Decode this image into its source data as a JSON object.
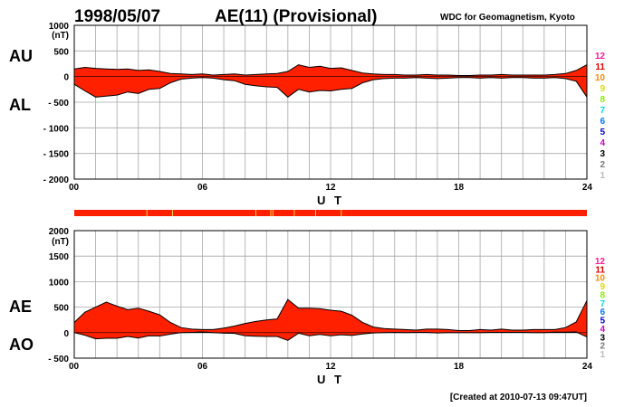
{
  "header": {
    "date": "1998/05/07",
    "index": "AE(11) (Provisional)",
    "source": "WDC for Geomagnetism, Kyoto"
  },
  "footer": {
    "created": "[Created at 2010-07-13 09:47UT]"
  },
  "colors": {
    "fill": "#ff2000",
    "station_strip": "#ff2000",
    "highlight": "#ffd040",
    "grid": "#a8a8a8",
    "background": "#ffffff"
  },
  "station_scale": {
    "labels": [
      "12",
      "11",
      "10",
      "9",
      "8",
      "7",
      "6",
      "5",
      "4",
      "3",
      "2",
      "1"
    ],
    "colors": [
      "#ff1493",
      "#dd0000",
      "#ff8800",
      "#dddd00",
      "#88ee00",
      "#00dddd",
      "#0077ff",
      "#0000cc",
      "#cc00cc",
      "#000000",
      "#777777",
      "#bbbbbb"
    ]
  },
  "chart_data": [
    {
      "type": "area",
      "panel": "AU-AL",
      "left_labels": [
        "AU",
        "AL"
      ],
      "unit": "(nT)",
      "xlabel": "U T",
      "xlim": [
        0,
        24
      ],
      "ylim": [
        -2000,
        1000
      ],
      "x_ticks": [
        "00",
        "06",
        "12",
        "18",
        "24"
      ],
      "y_ticks": [
        1000,
        500,
        0,
        -500,
        -1000,
        -1500,
        -2000
      ],
      "y_tick_labels": [
        "1000",
        "500",
        "0",
        "- 500",
        "- 1000",
        "- 1500",
        "- 2000"
      ],
      "grid": true,
      "x": [
        0,
        0.5,
        1,
        1.5,
        2,
        2.5,
        3,
        3.5,
        4,
        4.5,
        5,
        5.5,
        6,
        6.5,
        7,
        7.5,
        8,
        8.5,
        9,
        9.5,
        10,
        10.5,
        11,
        11.5,
        12,
        12.5,
        13,
        13.5,
        14,
        14.5,
        15,
        15.5,
        16,
        16.5,
        17,
        17.5,
        18,
        18.5,
        19,
        19.5,
        20,
        20.5,
        21,
        21.5,
        22,
        22.5,
        23,
        23.5,
        24
      ],
      "series": [
        {
          "name": "AU",
          "values": [
            150,
            180,
            160,
            150,
            140,
            150,
            120,
            130,
            100,
            60,
            50,
            40,
            50,
            30,
            40,
            50,
            30,
            40,
            50,
            60,
            100,
            230,
            180,
            200,
            160,
            170,
            120,
            70,
            50,
            40,
            40,
            30,
            30,
            40,
            30,
            30,
            20,
            20,
            30,
            30,
            40,
            30,
            30,
            30,
            30,
            40,
            60,
            120,
            230
          ]
        },
        {
          "name": "AL",
          "values": [
            -150,
            -280,
            -400,
            -380,
            -360,
            -300,
            -330,
            -250,
            -230,
            -120,
            -50,
            -30,
            -20,
            -30,
            -60,
            -80,
            -150,
            -180,
            -200,
            -210,
            -400,
            -250,
            -300,
            -270,
            -280,
            -250,
            -230,
            -120,
            -60,
            -40,
            -30,
            -30,
            -20,
            -30,
            -40,
            -30,
            -20,
            -20,
            -30,
            -20,
            -30,
            -20,
            -20,
            -30,
            -30,
            -20,
            -40,
            -90,
            -400
          ]
        }
      ]
    },
    {
      "type": "area",
      "panel": "AE-AO",
      "left_labels": [
        "AE",
        "AO"
      ],
      "unit": "(nT)",
      "xlabel": "U T",
      "xlim": [
        0,
        24
      ],
      "ylim": [
        -500,
        2000
      ],
      "x_ticks": [
        "00",
        "06",
        "12",
        "18",
        "24"
      ],
      "y_ticks": [
        2000,
        1500,
        1000,
        500,
        0,
        -500
      ],
      "y_tick_labels": [
        "2000",
        "1500",
        "1000",
        "500",
        "0",
        "- 500"
      ],
      "grid": true,
      "x": [
        0,
        0.5,
        1,
        1.5,
        2,
        2.5,
        3,
        3.5,
        4,
        4.5,
        5,
        5.5,
        6,
        6.5,
        7,
        7.5,
        8,
        8.5,
        9,
        9.5,
        10,
        10.5,
        11,
        11.5,
        12,
        12.5,
        13,
        13.5,
        14,
        14.5,
        15,
        15.5,
        16,
        16.5,
        17,
        17.5,
        18,
        18.5,
        19,
        19.5,
        20,
        20.5,
        21,
        21.5,
        22,
        22.5,
        23,
        23.5,
        24
      ],
      "series": [
        {
          "name": "AE",
          "values": [
            200,
            400,
            500,
            600,
            520,
            450,
            480,
            420,
            350,
            200,
            100,
            70,
            60,
            60,
            90,
            130,
            180,
            220,
            250,
            270,
            650,
            480,
            480,
            470,
            440,
            420,
            340,
            200,
            110,
            80,
            70,
            60,
            50,
            70,
            70,
            60,
            40,
            40,
            60,
            50,
            70,
            50,
            50,
            60,
            60,
            60,
            100,
            210,
            630
          ]
        },
        {
          "name": "AO",
          "values": [
            0,
            -50,
            -120,
            -110,
            -110,
            -75,
            -105,
            -60,
            -65,
            -30,
            0,
            5,
            15,
            0,
            -10,
            -15,
            -60,
            -70,
            -75,
            -75,
            -150,
            -10,
            -60,
            -35,
            -60,
            -40,
            -55,
            -25,
            -5,
            0,
            5,
            0,
            5,
            5,
            -5,
            0,
            0,
            0,
            0,
            5,
            5,
            5,
            5,
            0,
            0,
            10,
            10,
            15,
            -85
          ]
        }
      ]
    }
  ]
}
